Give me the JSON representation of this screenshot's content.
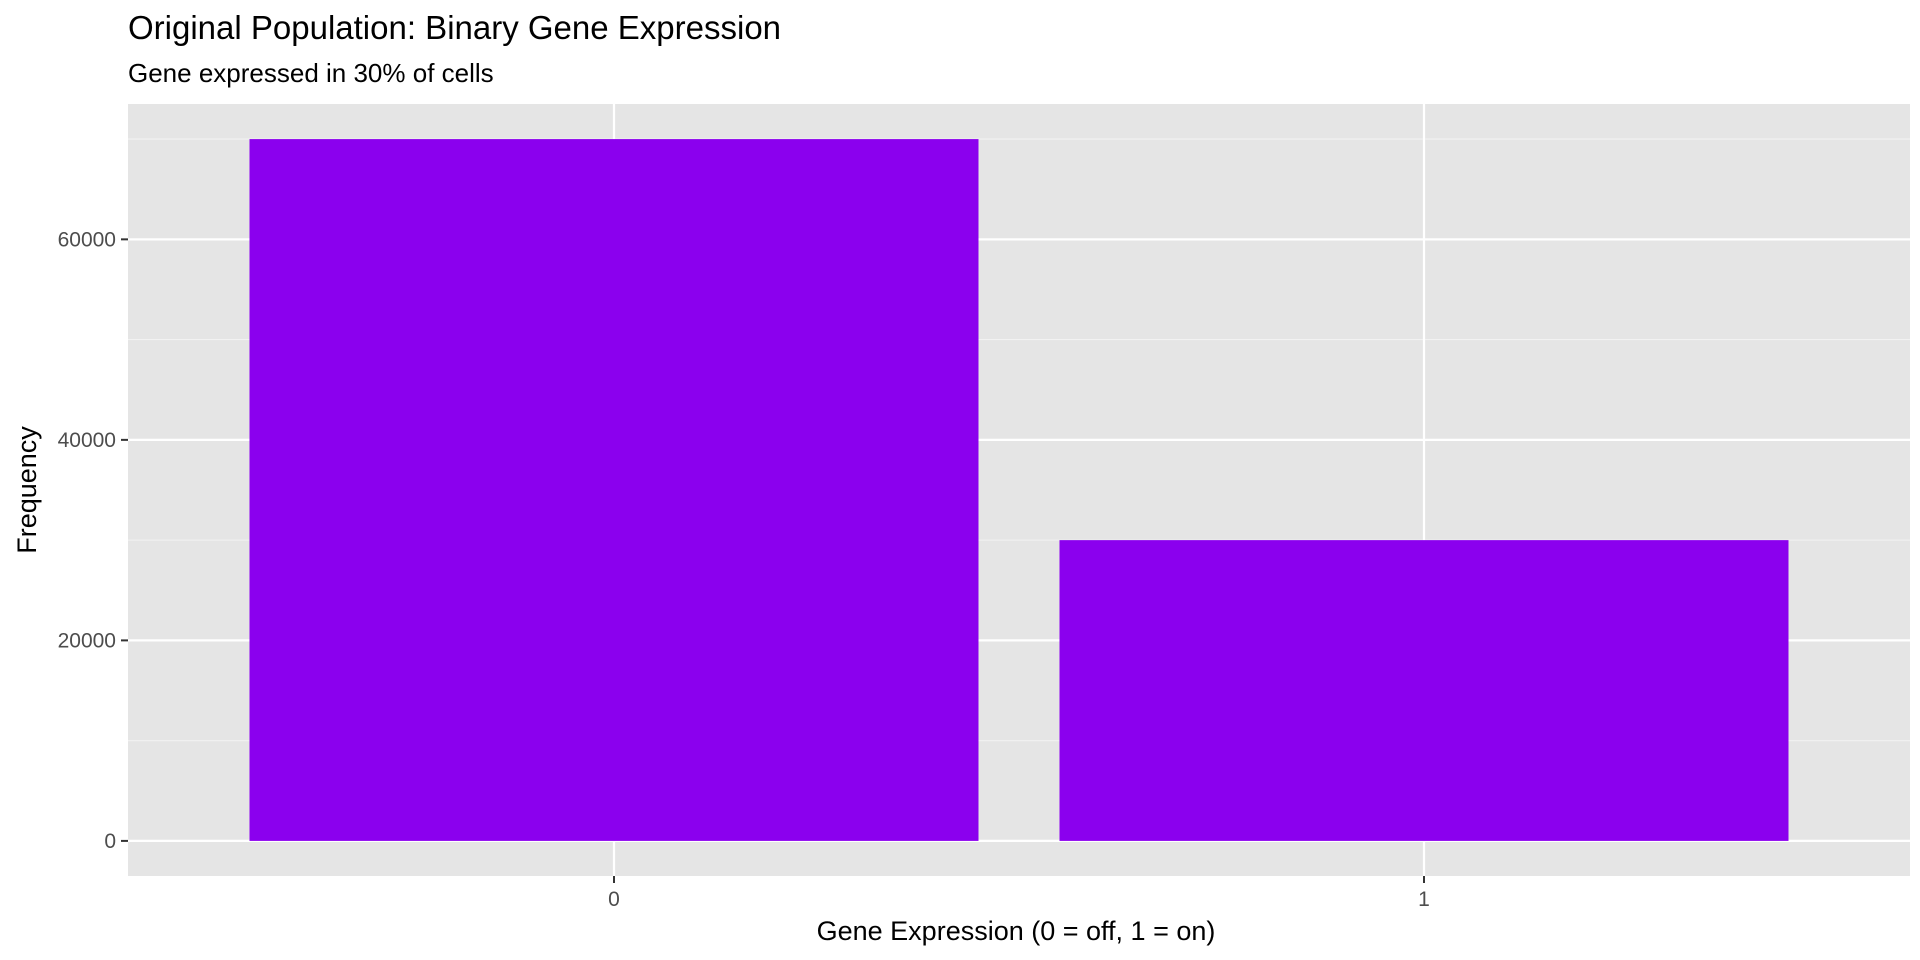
{
  "chart_data": {
    "type": "bar",
    "title": "Original Population: Binary Gene Expression",
    "subtitle": "Gene expressed in 30% of cells",
    "xlabel": "Gene Expression (0 = off, 1 = on)",
    "ylabel": "Frequency",
    "categories": [
      "0",
      "1"
    ],
    "values": [
      70000,
      30000
    ],
    "ylim": [
      -3500,
      73500
    ],
    "yticks": [
      0,
      20000,
      40000,
      60000
    ],
    "ytick_labels": [
      "0",
      "20000",
      "40000",
      "60000"
    ],
    "grid": true,
    "legend": "none",
    "colors": {
      "bar": "#8B00EE",
      "panel_background": "#E5E5E5",
      "grid_major": "#FFFFFF",
      "grid_minor": "#F2F2F2",
      "tick": "#333333",
      "tick_text": "#4D4D4D"
    }
  }
}
